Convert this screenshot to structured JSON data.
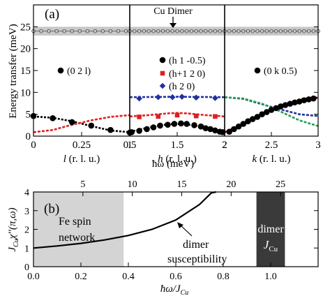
{
  "chart_data": [
    {
      "type": "scatter",
      "panel_label": "(a)",
      "ylabel": "Energy transfer (meV)",
      "ylim": [
        0,
        30
      ],
      "y_ticks": [
        0,
        5,
        10,
        15,
        20,
        25
      ],
      "annotation": "Cu Dimer",
      "dimer_band": {
        "y": 24.0,
        "low": 23.0,
        "high": 25.0,
        "color": "#c8c8c8"
      },
      "subpanels": [
        {
          "xlabel_var": "l",
          "xlabel_unit": " (r. l. u.)",
          "xlim": [
            0,
            0.5
          ],
          "x_ticks": [
            "0",
            "0.25",
            "0.5"
          ],
          "legend": [
            {
              "marker": "circle",
              "color": "#000000",
              "label": "(0 2 l)"
            }
          ],
          "series": [
            {
              "name": "dimer",
              "marker": "open-circle",
              "color": "#555555",
              "x": [
                0.0,
                0.04,
                0.08,
                0.12,
                0.16,
                0.2,
                0.24,
                0.28,
                0.32,
                0.36,
                0.4,
                0.44,
                0.48
              ],
              "y": [
                24.0,
                24.0,
                24.0,
                24.0,
                24.0,
                24.0,
                24.0,
                24.0,
                24.0,
                24.0,
                24.0,
                24.0,
                24.0
              ]
            },
            {
              "name": "(0 2 l)",
              "marker": "circle",
              "color": "#000000",
              "x": [
                0.0,
                0.1,
                0.2,
                0.3,
                0.4,
                0.5
              ],
              "y": [
                4.6,
                4.1,
                3.2,
                2.4,
                1.4,
                0.8
              ]
            }
          ],
          "curves": [
            {
              "color": "#000000",
              "dash": "3,2",
              "x": [
                0,
                0.1,
                0.2,
                0.3,
                0.4,
                0.5
              ],
              "y": [
                4.5,
                4.2,
                3.4,
                2.3,
                1.3,
                0.9
              ]
            },
            {
              "color": "#dd2020",
              "dash": "4,2",
              "x": [
                0,
                0.1,
                0.2,
                0.3,
                0.4,
                0.5
              ],
              "y": [
                0.9,
                1.4,
                2.6,
                3.6,
                4.4,
                4.8
              ]
            }
          ]
        },
        {
          "xlabel_var": "h",
          "xlabel_unit": " (r. l. u.)",
          "xlim": [
            1,
            2
          ],
          "x_ticks": [
            "1",
            "1.5",
            "2"
          ],
          "legend": [
            {
              "marker": "circle",
              "color": "#000000",
              "label": "(h 1 -0.5)"
            },
            {
              "marker": "square",
              "color": "#dd2020",
              "label": "(h+1 2 0)"
            },
            {
              "marker": "diamond",
              "color": "#2030a0",
              "label": "(h 2 0)"
            }
          ],
          "series": [
            {
              "name": "dimer",
              "marker": "open-circle",
              "color": "#555555",
              "x": [
                1.0,
                1.05,
                1.1,
                1.15,
                1.2,
                1.25,
                1.3,
                1.35,
                1.4,
                1.45,
                1.5,
                1.55,
                1.6,
                1.65,
                1.7,
                1.75,
                1.8,
                1.85,
                1.9,
                1.95,
                2.0
              ],
              "y": [
                24.0,
                24.0,
                24.0,
                24.0,
                24.0,
                24.0,
                24.0,
                24.0,
                24.0,
                24.0,
                24.0,
                24.0,
                24.0,
                24.0,
                24.0,
                24.0,
                24.0,
                24.0,
                24.0,
                24.0,
                24.0
              ]
            },
            {
              "name": "(h 1 -0.5)",
              "marker": "circle",
              "color": "#000000",
              "x": [
                1.02,
                1.1,
                1.18,
                1.25,
                1.32,
                1.4,
                1.47,
                1.54,
                1.6,
                1.68,
                1.75,
                1.8,
                1.85,
                1.9,
                1.95,
                1.98
              ],
              "y": [
                0.9,
                1.2,
                1.6,
                2.0,
                2.4,
                2.6,
                2.8,
                2.9,
                2.8,
                2.5,
                2.2,
                1.8,
                1.6,
                1.3,
                1.0,
                0.9
              ]
            },
            {
              "name": "(h+1 2 0)",
              "marker": "square",
              "color": "#dd2020",
              "x": [
                1.1,
                1.3,
                1.5,
                1.7,
                1.9
              ],
              "y": [
                4.4,
                4.5,
                4.8,
                4.6,
                4.5
              ]
            },
            {
              "name": "(h 2 0)",
              "marker": "diamond",
              "color": "#2030a0",
              "x": [
                1.1,
                1.3,
                1.45,
                1.55,
                1.7,
                1.9
              ],
              "y": [
                8.6,
                8.9,
                8.9,
                9.0,
                8.8,
                8.7
              ]
            }
          ],
          "curves": [
            {
              "color": "#000000",
              "dash": "3,2",
              "x": [
                1.0,
                1.2,
                1.4,
                1.5,
                1.6,
                1.8,
                2.0
              ],
              "y": [
                1.0,
                2.0,
                2.7,
                2.8,
                2.7,
                2.0,
                1.0
              ]
            },
            {
              "color": "#dd2020",
              "dash": "4,2",
              "x": [
                1.0,
                1.2,
                1.4,
                1.5,
                1.6,
                1.8,
                2.0
              ],
              "y": [
                4.5,
                4.8,
                5.2,
                5.3,
                5.2,
                4.8,
                4.5
              ]
            },
            {
              "color": "#2030a0",
              "dash": "4,2",
              "x": [
                1.0,
                1.5,
                2.0
              ],
              "y": [
                8.9,
                9.0,
                8.9
              ]
            }
          ]
        },
        {
          "xlabel_var": "k",
          "xlabel_unit": " (r. l. u.)",
          "xlim": [
            2,
            3
          ],
          "x_ticks": [
            "2",
            "2.5",
            "3"
          ],
          "legend": [
            {
              "marker": "circle",
              "color": "#000000",
              "label": "(0 k 0.5)"
            }
          ],
          "series": [
            {
              "name": "dimer",
              "marker": "open-circle",
              "color": "#555555",
              "x": [
                2.0,
                2.05,
                2.1,
                2.15,
                2.2,
                2.25,
                2.3,
                2.35,
                2.4,
                2.45,
                2.5,
                2.55,
                2.6,
                2.65,
                2.7,
                2.75,
                2.8,
                2.85,
                2.9,
                2.95,
                3.0
              ],
              "y": [
                24.0,
                24.0,
                24.0,
                24.0,
                24.0,
                24.0,
                24.0,
                24.0,
                24.0,
                24.0,
                24.0,
                24.0,
                24.0,
                24.0,
                24.0,
                24.0,
                24.0,
                24.0,
                24.0,
                24.0,
                24.0
              ]
            },
            {
              "name": "(0 k 0.5)",
              "marker": "circle",
              "color": "#000000",
              "x": [
                2.05,
                2.1,
                2.15,
                2.2,
                2.25,
                2.3,
                2.35,
                2.4,
                2.45,
                2.5,
                2.55,
                2.6,
                2.65,
                2.7,
                2.75,
                2.8,
                2.85,
                2.9,
                2.95
              ],
              "y": [
                1.0,
                1.6,
                2.2,
                2.8,
                3.4,
                3.9,
                4.4,
                5.0,
                5.5,
                6.0,
                6.4,
                6.8,
                7.1,
                7.4,
                7.7,
                7.9,
                8.2,
                8.4,
                8.6
              ]
            }
          ],
          "curves": [
            {
              "color": "#000000",
              "dash": "3,2",
              "x": [
                2.0,
                2.2,
                2.4,
                2.6,
                2.8,
                3.0
              ],
              "y": [
                0.9,
                2.8,
                5.0,
                6.9,
                8.2,
                8.8
              ]
            },
            {
              "color": "#dd2020",
              "dash": "4,2",
              "x": [
                2.0,
                2.2,
                2.4,
                2.6,
                2.8,
                3.0
              ],
              "y": [
                0.9,
                2.6,
                4.9,
                7.0,
                8.4,
                9.0
              ]
            },
            {
              "color": "#2030a0",
              "dash": "4,2",
              "x": [
                2.0,
                2.2,
                2.4,
                2.6,
                2.8,
                3.0
              ],
              "y": [
                8.9,
                8.5,
                7.3,
                6.1,
                5.0,
                4.6
              ]
            },
            {
              "color": "#20a050",
              "dash": "4,2",
              "x": [
                2.0,
                2.2,
                2.4,
                2.6,
                2.8,
                3.0
              ],
              "y": [
                8.9,
                8.6,
                7.4,
                5.6,
                3.6,
                2.3
              ]
            }
          ]
        }
      ]
    },
    {
      "type": "line",
      "panel_label": "(b)",
      "xlabel": "ħω/J",
      "xlabel_sub": "Cu",
      "ylabel": "J",
      "ylabel_sub": "Cu",
      "ylabel_rest": "χ′′(π,ω)",
      "xlim": [
        0.0,
        1.2
      ],
      "ylim": [
        0,
        4
      ],
      "x_ticks": [
        "0.0",
        "0.2",
        "0.4",
        "0.6",
        "0.8",
        "1.0"
      ],
      "y_ticks": [
        "0",
        "1",
        "2",
        "3",
        "4"
      ],
      "top_axis_label": "ħω (meV)",
      "top_axis_ticks": [
        "5",
        "10",
        "15",
        "20",
        "25"
      ],
      "top_axis_units_per_jcu": 24,
      "regions": [
        {
          "name": "Fe spin network",
          "x_start": 0.0,
          "x_end": 0.38,
          "color": "#d4d4d4",
          "text_lines": [
            "Fe spin",
            "network"
          ]
        },
        {
          "name": "dimer JCu",
          "x_start": 0.94,
          "x_end": 1.06,
          "color": "#3a3a3a",
          "text_lines": [
            "dimer",
            "J"
          ],
          "text_sub": "Cu"
        }
      ],
      "curve": {
        "name": "dimer susceptibility",
        "x": [
          0.0,
          0.1,
          0.2,
          0.3,
          0.4,
          0.5,
          0.6,
          0.7,
          0.75,
          0.77
        ],
        "y": [
          1.0,
          1.11,
          1.25,
          1.43,
          1.67,
          2.0,
          2.5,
          3.33,
          3.95,
          4.0
        ]
      },
      "annotation": {
        "text_lines": [
          "dimer",
          "susceptibility"
        ],
        "arrow_to": [
          0.6,
          2.5
        ]
      }
    }
  ]
}
